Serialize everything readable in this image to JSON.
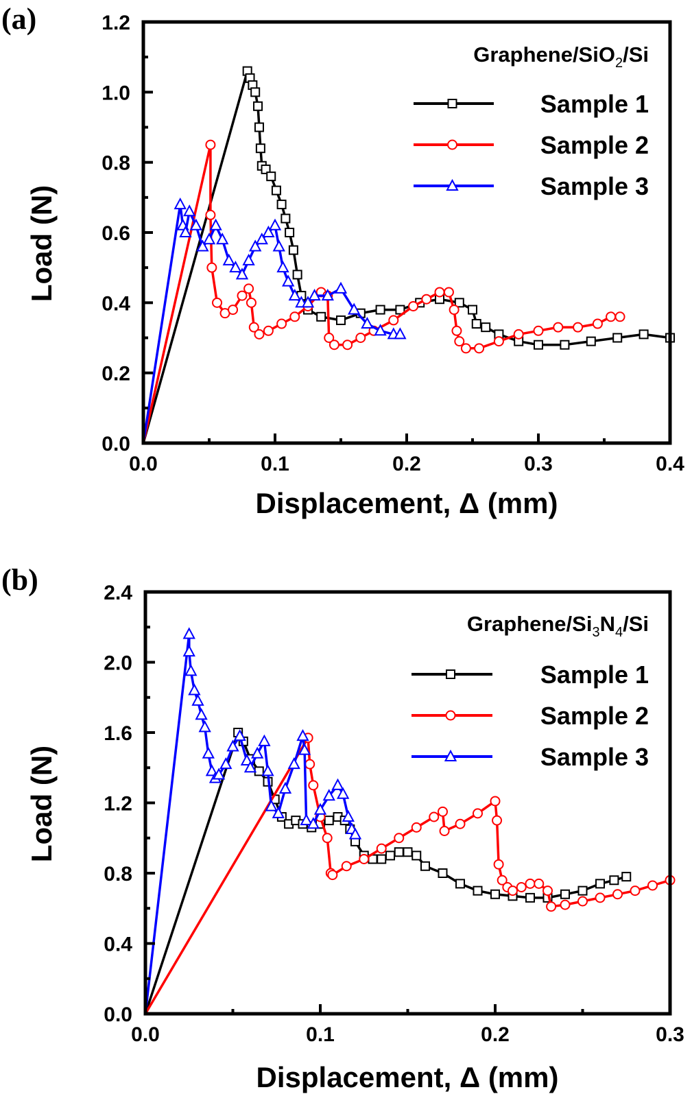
{
  "chart_data": [
    {
      "type": "line",
      "panel_label": "(a)",
      "title": "",
      "xlabel": "Displacement, Δ (mm)",
      "ylabel": "Load (N)",
      "xlim": [
        0.0,
        0.4
      ],
      "ylim": [
        0.0,
        1.2
      ],
      "xticks": [
        "0.0",
        "0.1",
        "0.2",
        "0.3",
        "0.4"
      ],
      "yticks": [
        "0.0",
        "0.2",
        "0.4",
        "0.6",
        "0.8",
        "1.0",
        "1.2"
      ],
      "xtick_values": [
        0.0,
        0.1,
        0.2,
        0.3,
        0.4
      ],
      "ytick_values": [
        0.0,
        0.2,
        0.4,
        0.6,
        0.8,
        1.0,
        1.2
      ],
      "grid": false,
      "legend": {
        "title": "Graphene/SiO2/Si",
        "title_main": "Graphene/SiO",
        "title_sub": "2",
        "title_tail": "/Si",
        "placement": "top-right"
      },
      "series": [
        {
          "name": "Sample 1",
          "color": "#000000",
          "marker": "square",
          "x": [
            0.0,
            0.079,
            0.081,
            0.083,
            0.085,
            0.087,
            0.088,
            0.089,
            0.09,
            0.093,
            0.097,
            0.101,
            0.105,
            0.108,
            0.111,
            0.114,
            0.117,
            0.12,
            0.125,
            0.135,
            0.15,
            0.165,
            0.18,
            0.195,
            0.21,
            0.225,
            0.24,
            0.25,
            0.253,
            0.26,
            0.27,
            0.285,
            0.3,
            0.32,
            0.34,
            0.36,
            0.38,
            0.4
          ],
          "y": [
            0.0,
            1.06,
            1.04,
            1.02,
            1.0,
            0.96,
            0.9,
            0.84,
            0.79,
            0.78,
            0.76,
            0.72,
            0.68,
            0.64,
            0.6,
            0.55,
            0.48,
            0.42,
            0.38,
            0.36,
            0.35,
            0.37,
            0.38,
            0.38,
            0.4,
            0.41,
            0.4,
            0.38,
            0.34,
            0.33,
            0.31,
            0.29,
            0.28,
            0.28,
            0.29,
            0.3,
            0.31,
            0.3
          ]
        },
        {
          "name": "Sample 2",
          "color": "#ff0000",
          "marker": "circle",
          "x": [
            0.0,
            0.051,
            0.051,
            0.052,
            0.056,
            0.062,
            0.068,
            0.075,
            0.08,
            0.082,
            0.084,
            0.088,
            0.095,
            0.105,
            0.115,
            0.125,
            0.135,
            0.14,
            0.141,
            0.145,
            0.155,
            0.165,
            0.175,
            0.19,
            0.205,
            0.215,
            0.225,
            0.232,
            0.236,
            0.238,
            0.24,
            0.245,
            0.255,
            0.27,
            0.285,
            0.3,
            0.315,
            0.33,
            0.345,
            0.355,
            0.362
          ],
          "y": [
            0.0,
            0.85,
            0.65,
            0.5,
            0.4,
            0.37,
            0.38,
            0.42,
            0.44,
            0.4,
            0.33,
            0.31,
            0.32,
            0.34,
            0.36,
            0.39,
            0.43,
            0.42,
            0.3,
            0.28,
            0.28,
            0.3,
            0.32,
            0.35,
            0.39,
            0.41,
            0.43,
            0.43,
            0.38,
            0.32,
            0.29,
            0.27,
            0.27,
            0.29,
            0.31,
            0.32,
            0.33,
            0.33,
            0.34,
            0.36,
            0.36
          ]
        },
        {
          "name": "Sample 3",
          "color": "#0000ff",
          "marker": "triangle",
          "x": [
            0.0,
            0.028,
            0.03,
            0.032,
            0.035,
            0.04,
            0.045,
            0.05,
            0.055,
            0.06,
            0.065,
            0.07,
            0.075,
            0.08,
            0.085,
            0.09,
            0.095,
            0.1,
            0.103,
            0.106,
            0.11,
            0.115,
            0.12,
            0.125,
            0.13,
            0.14,
            0.15,
            0.16,
            0.17,
            0.18,
            0.19,
            0.195
          ],
          "y": [
            0.0,
            0.68,
            0.62,
            0.6,
            0.66,
            0.62,
            0.56,
            0.58,
            0.62,
            0.58,
            0.52,
            0.5,
            0.48,
            0.52,
            0.56,
            0.58,
            0.6,
            0.62,
            0.56,
            0.5,
            0.46,
            0.42,
            0.4,
            0.4,
            0.42,
            0.42,
            0.44,
            0.38,
            0.34,
            0.32,
            0.31,
            0.31
          ]
        }
      ]
    },
    {
      "type": "line",
      "panel_label": "(b)",
      "title": "",
      "xlabel": "Displacement, Δ (mm)",
      "ylabel": "Load (N)",
      "xlim": [
        0.0,
        0.3
      ],
      "ylim": [
        0.0,
        2.4
      ],
      "xticks": [
        "0.0",
        "0.1",
        "0.2",
        "0.3"
      ],
      "yticks": [
        "0.0",
        "0.4",
        "0.8",
        "1.2",
        "1.6",
        "2.0",
        "2.4"
      ],
      "xtick_values": [
        0.0,
        0.1,
        0.2,
        0.3
      ],
      "ytick_values": [
        0.0,
        0.4,
        0.8,
        1.2,
        1.6,
        2.0,
        2.4
      ],
      "grid": false,
      "legend": {
        "title": "Graphene/Si3N4/Si",
        "title_main": "Graphene/Si",
        "title_sub": "3",
        "title_mid": "N",
        "title_sub2": "4",
        "title_tail": "/Si",
        "placement": "top-right"
      },
      "series": [
        {
          "name": "Sample 1",
          "color": "#000000",
          "marker": "square",
          "x": [
            0.0,
            0.053,
            0.056,
            0.06,
            0.065,
            0.07,
            0.074,
            0.078,
            0.082,
            0.086,
            0.09,
            0.095,
            0.1,
            0.105,
            0.11,
            0.114,
            0.117,
            0.12,
            0.125,
            0.13,
            0.135,
            0.14,
            0.145,
            0.15,
            0.155,
            0.16,
            0.17,
            0.18,
            0.19,
            0.2,
            0.21,
            0.22,
            0.23,
            0.24,
            0.25,
            0.26,
            0.268,
            0.275
          ],
          "y": [
            0.0,
            1.6,
            1.55,
            1.45,
            1.38,
            1.32,
            1.22,
            1.12,
            1.08,
            1.1,
            1.08,
            1.06,
            1.08,
            1.1,
            1.12,
            1.1,
            1.05,
            0.98,
            0.9,
            0.88,
            0.88,
            0.9,
            0.92,
            0.92,
            0.9,
            0.84,
            0.8,
            0.74,
            0.7,
            0.68,
            0.67,
            0.66,
            0.66,
            0.68,
            0.7,
            0.74,
            0.76,
            0.78
          ]
        },
        {
          "name": "Sample 2",
          "color": "#ff0000",
          "marker": "circle",
          "x": [
            0.0,
            0.093,
            0.094,
            0.096,
            0.1,
            0.104,
            0.106,
            0.107,
            0.115,
            0.125,
            0.135,
            0.145,
            0.155,
            0.165,
            0.17,
            0.171,
            0.18,
            0.19,
            0.2,
            0.201,
            0.202,
            0.204,
            0.207,
            0.21,
            0.215,
            0.22,
            0.225,
            0.23,
            0.232,
            0.24,
            0.25,
            0.26,
            0.27,
            0.28,
            0.29,
            0.3
          ],
          "y": [
            0.0,
            1.57,
            1.42,
            1.3,
            1.12,
            1.0,
            0.8,
            0.79,
            0.84,
            0.88,
            0.94,
            1.0,
            1.06,
            1.12,
            1.15,
            1.04,
            1.08,
            1.14,
            1.21,
            1.1,
            0.85,
            0.76,
            0.72,
            0.7,
            0.72,
            0.74,
            0.74,
            0.7,
            0.61,
            0.62,
            0.64,
            0.66,
            0.68,
            0.7,
            0.73,
            0.76
          ]
        },
        {
          "name": "Sample 3",
          "color": "#0000ff",
          "marker": "triangle",
          "x": [
            0.0,
            0.025,
            0.025,
            0.026,
            0.028,
            0.03,
            0.032,
            0.034,
            0.036,
            0.038,
            0.04,
            0.042,
            0.046,
            0.05,
            0.054,
            0.058,
            0.06,
            0.064,
            0.068,
            0.07,
            0.072,
            0.076,
            0.08,
            0.085,
            0.09,
            0.091,
            0.092,
            0.096,
            0.1,
            0.105,
            0.11,
            0.113,
            0.116,
            0.118,
            0.12
          ],
          "y": [
            0.0,
            2.16,
            2.06,
            1.95,
            1.84,
            1.78,
            1.7,
            1.63,
            1.48,
            1.38,
            1.34,
            1.36,
            1.42,
            1.52,
            1.58,
            1.44,
            1.4,
            1.48,
            1.55,
            1.38,
            1.18,
            1.14,
            1.28,
            1.42,
            1.58,
            1.5,
            1.1,
            1.08,
            1.16,
            1.24,
            1.3,
            1.25,
            1.12,
            1.05,
            1.02
          ]
        }
      ]
    }
  ]
}
